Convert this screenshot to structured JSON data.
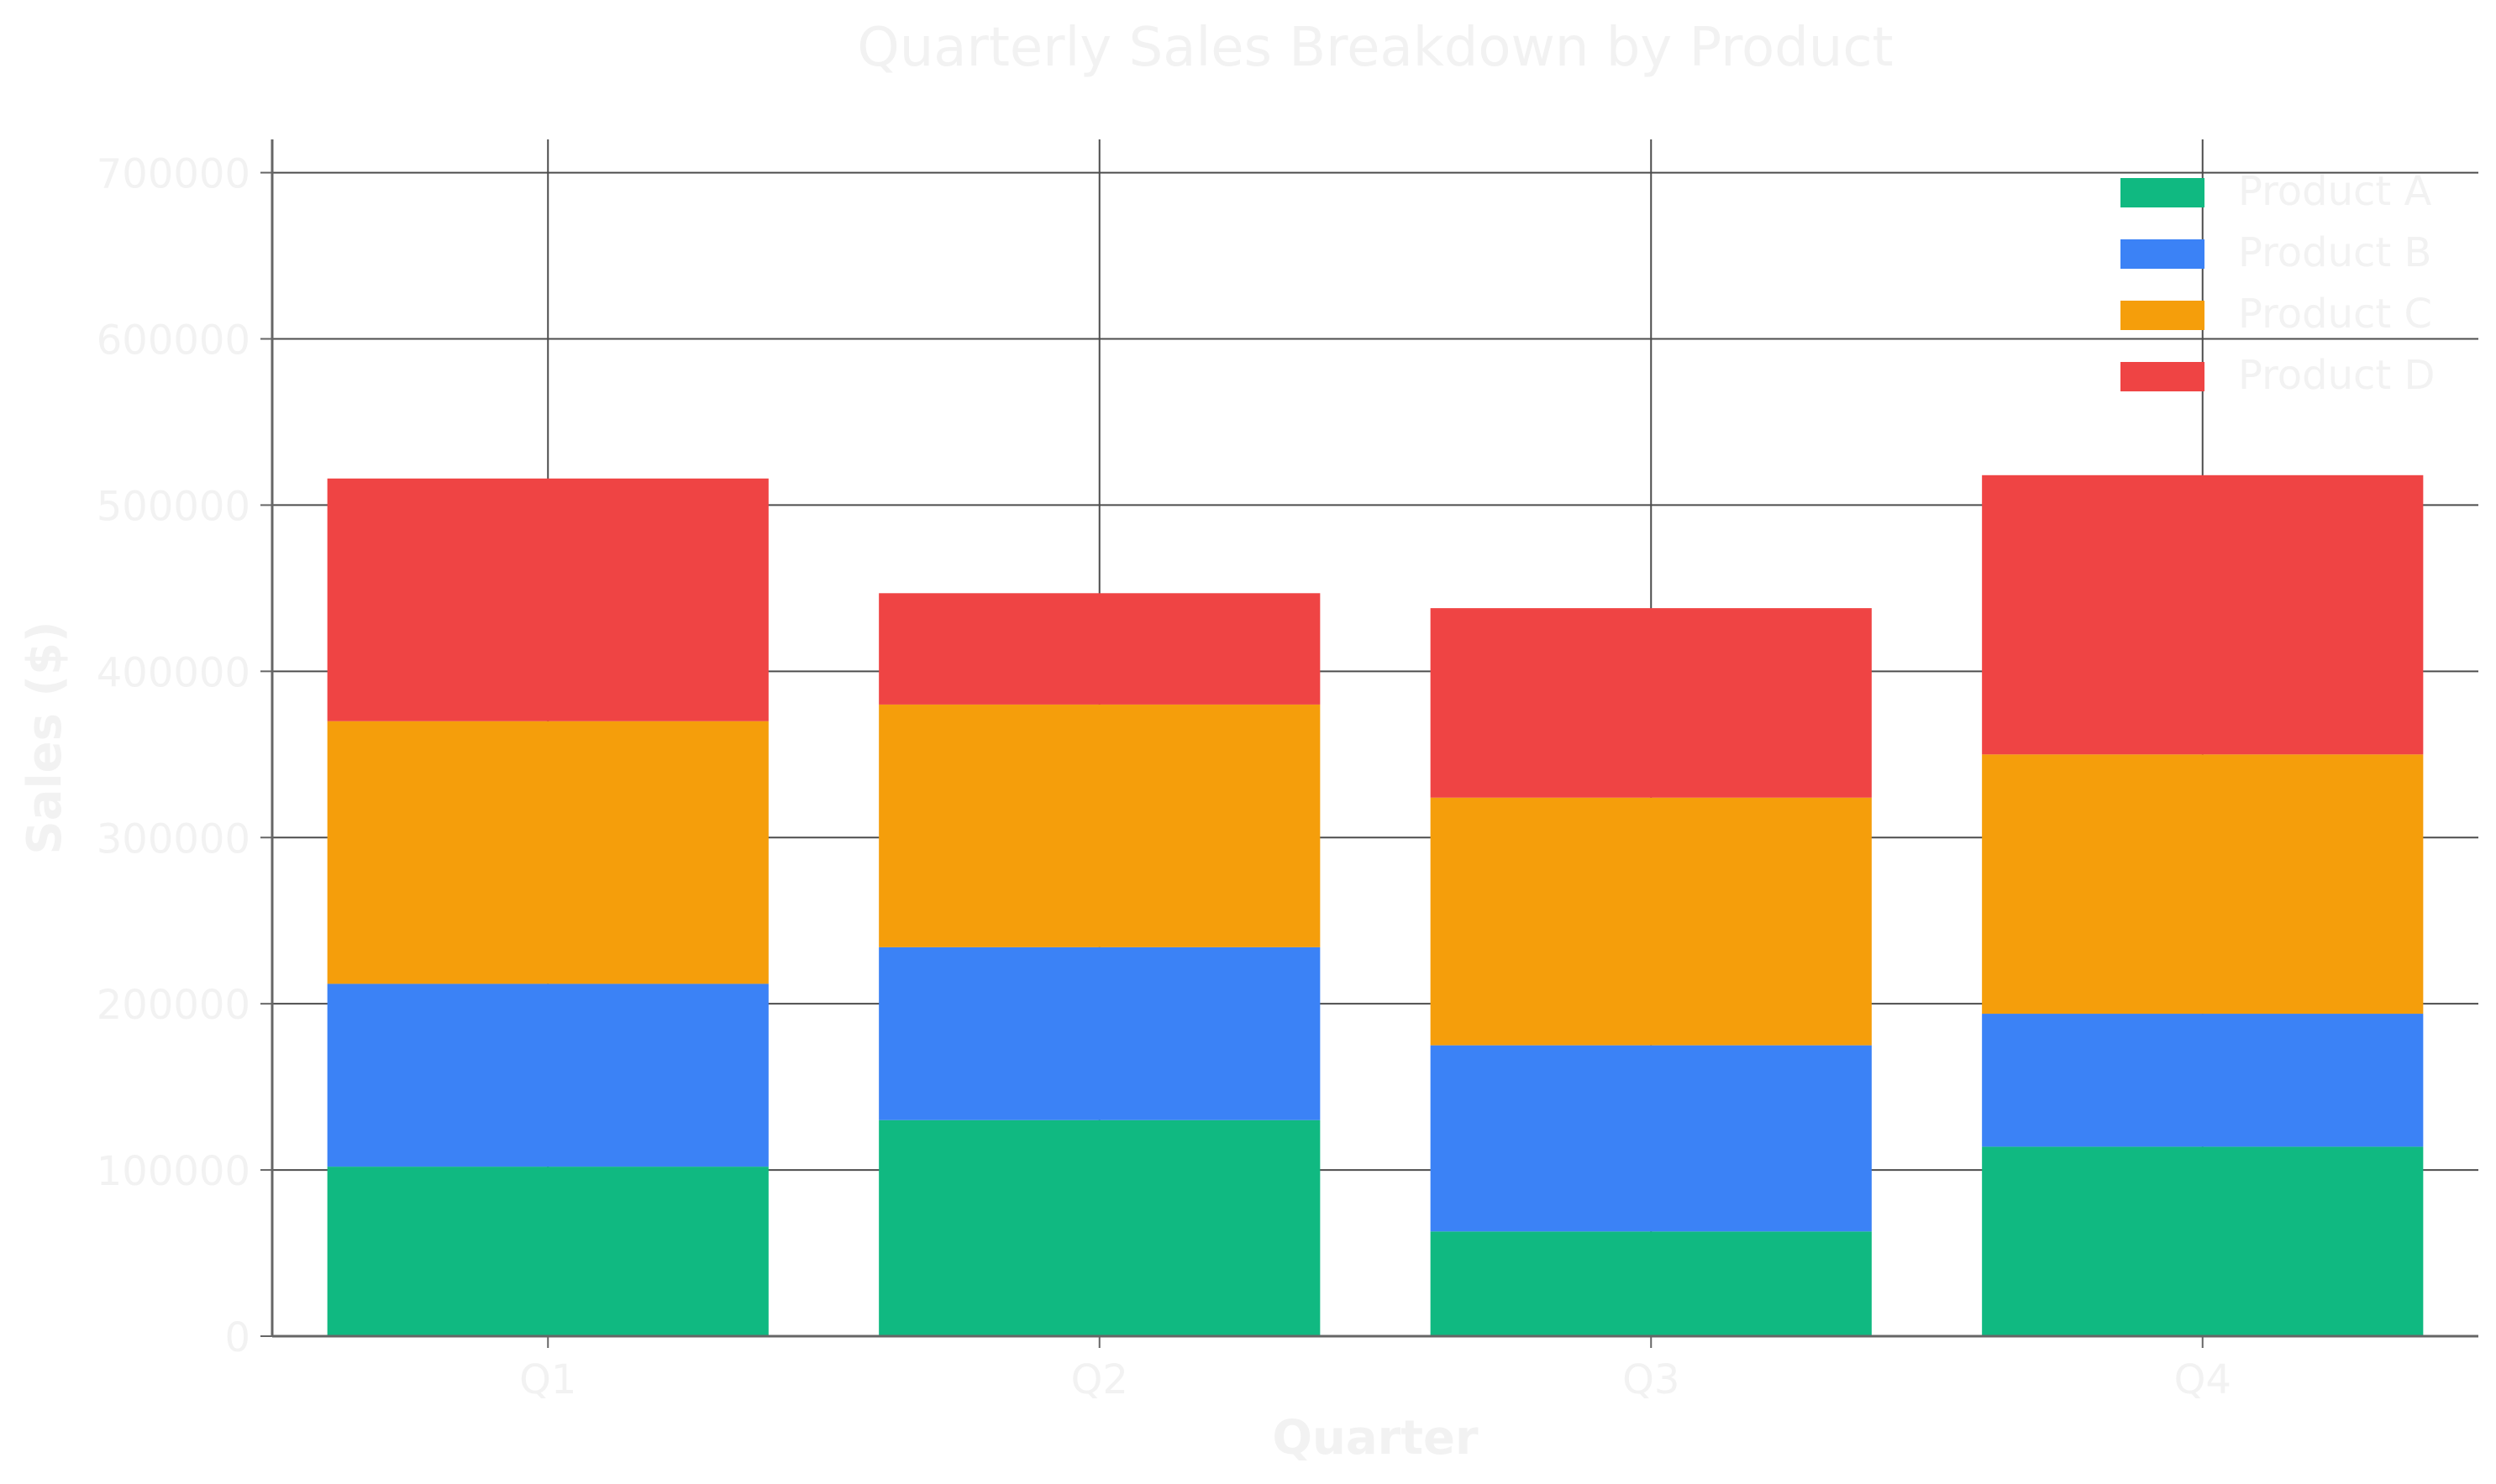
{
  "chart_data": {
    "type": "bar",
    "stacked": true,
    "title": "Quarterly Sales Breakdown by Product",
    "xlabel": "Quarter",
    "ylabel": "Sales ($)",
    "categories": [
      "Q1",
      "Q2",
      "Q3",
      "Q4"
    ],
    "ylim": [
      0,
      720000
    ],
    "yticks": [
      0,
      100000,
      200000,
      300000,
      400000,
      500000,
      600000,
      700000
    ],
    "grid": true,
    "legend_position": "top-right",
    "series": [
      {
        "name": "Product A",
        "color": "#10b981",
        "values": [
          102000,
          130000,
          63000,
          114000
        ]
      },
      {
        "name": "Product B",
        "color": "#3b82f6",
        "values": [
          110000,
          104000,
          112000,
          80000
        ]
      },
      {
        "name": "Product C",
        "color": "#f59e0b",
        "values": [
          158000,
          146000,
          149000,
          156000
        ]
      },
      {
        "name": "Product D",
        "color": "#ef4444",
        "values": [
          146000,
          67000,
          114000,
          168000
        ]
      }
    ],
    "text_color": "#f2f2f2",
    "grid_color": "#4d4d4d",
    "axis_color": "#666666"
  }
}
